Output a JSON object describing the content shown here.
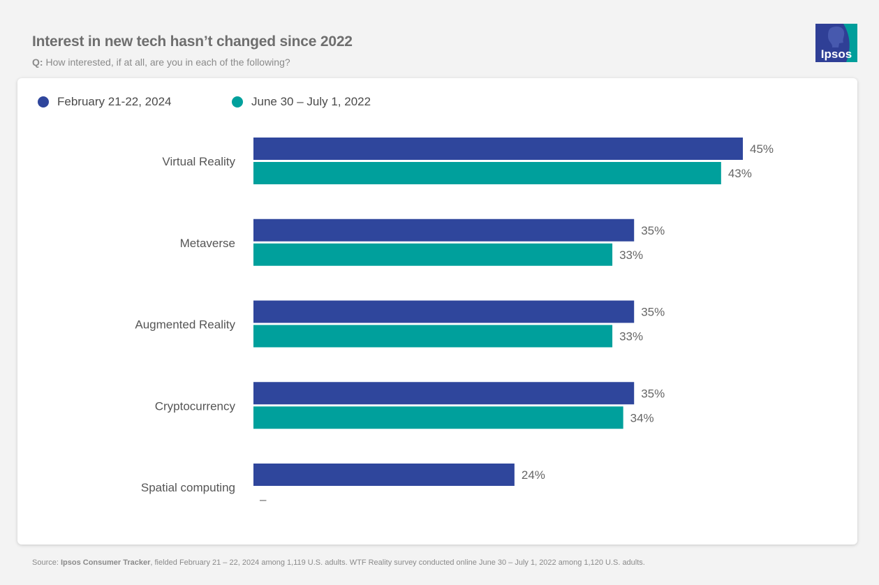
{
  "header": {
    "title": "Interest in new tech hasn’t changed since 2022",
    "subtitle_prefix": "Q:",
    "subtitle_text": " How interested, if at all, are you in each of the following?"
  },
  "logo": {
    "text": "Ipsos",
    "bg_color": "#2f3f96",
    "accent_color": "#009e9b"
  },
  "footer": {
    "prefix": "Source: ",
    "source_name": "Ipsos Consumer Tracker",
    "rest": ", fielded February 21 – 22, 2024 among 1,119 U.S. adults. WTF Reality survey conducted online June 30 – July 1, 2022 among 1,120 U.S. adults."
  },
  "chart_data": {
    "type": "bar",
    "orientation": "horizontal",
    "title": "Interest in new tech hasn’t changed since 2022",
    "categories": [
      "Virtual Reality",
      "Metaverse",
      "Augmented Reality",
      "Cryptocurrency",
      "Spatial computing"
    ],
    "series": [
      {
        "name": "February 21-22, 2024",
        "color": "#2f469c",
        "values": [
          45,
          35,
          35,
          35,
          24
        ],
        "labels": [
          "45%",
          "35%",
          "35%",
          "35%",
          "24%"
        ]
      },
      {
        "name": "June 30 – July 1, 2022",
        "color": "#00a09c",
        "values": [
          43,
          33,
          33,
          34,
          null
        ],
        "labels": [
          "43%",
          "33%",
          "33%",
          "34%",
          "–"
        ]
      }
    ],
    "xlim": [
      0,
      45
    ],
    "legend_position": "top-left",
    "grid": false
  }
}
